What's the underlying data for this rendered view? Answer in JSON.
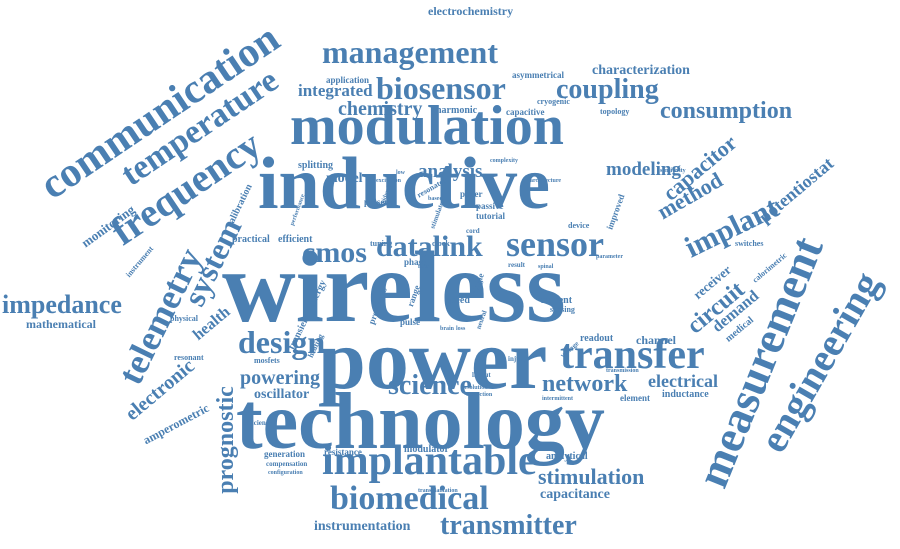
{
  "word_cloud": {
    "color": "#4a7fb2",
    "words": {
      "wireless": "wireless",
      "power": "power",
      "technology": "technology",
      "inductive": "inductive",
      "modulation": "modulation",
      "communication": "communication",
      "measurement": "measurement",
      "engineering": "engineering",
      "transfer": "transfer",
      "implantable": "implantable",
      "biomedical": "biomedical",
      "frequency": "frequency",
      "temperature": "temperature",
      "management": "management",
      "biosensor": "biosensor",
      "sensor": "sensor",
      "telemetry": "telemetry",
      "system": "system",
      "implant": "implant",
      "design": "design",
      "cmos": "cmos",
      "datalink": "datalink",
      "transmitter": "transmitter",
      "prognostic": "prognostic",
      "impedance": "impedance",
      "coupling": "coupling",
      "consumption": "consumption",
      "science": "science",
      "network": "network",
      "circuit": "circuit",
      "capacitor": "capacitor",
      "method": "method",
      "electronic": "electronic",
      "stimulation": "stimulation",
      "chemistry": "chemistry",
      "integrated": "integrated",
      "modeling": "modeling",
      "analysis": "analysis",
      "potentiostat": "potentiostat",
      "electrical": "electrical",
      "powering": "powering",
      "oscillator": "oscillator",
      "capacitance": "capacitance",
      "instrumentation": "instrumentation",
      "health": "health",
      "demand": "demand",
      "receiver": "receiver",
      "amperometric": "amperometric",
      "monitoring": "monitoring",
      "electrochemistry": "electrochemistry",
      "characterization": "characterization",
      "mathematical": "mathematical",
      "application": "application",
      "asymmetrical": "asymmetrical",
      "harmonic": "harmonic",
      "capacitive": "capacitive",
      "cryogenic": "cryogenic",
      "topology": "topology",
      "splitting": "splitting",
      "model": "model",
      "resonator": "resonator",
      "calibration": "calibration",
      "practical": "practical",
      "efficient": "efficient",
      "instrument": "instrument",
      "physical": "physical",
      "resonant": "resonant",
      "mosfets": "mosfets",
      "energy": "energy",
      "transient": "transient",
      "prosthesis": "prosthesis",
      "channel": "channel",
      "readout": "readout",
      "current": "current",
      "sensing": "sensing",
      "speed": "speed",
      "paper": "paper",
      "passive": "passive",
      "tutorial": "tutorial",
      "present": "present",
      "phase": "phase",
      "tuning": "tuning",
      "clock": "clock",
      "range": "range",
      "pulse": "pulse",
      "inductance": "inductance",
      "element": "element",
      "transmission": "transmission",
      "medical": "medical",
      "switches": "switches",
      "calorimetric": "calorimetric",
      "improved": "improved",
      "device": "device",
      "resistance": "resistance",
      "modulator": "modulator",
      "generation": "generation",
      "compensation": "compensation",
      "configuration": "configuration",
      "analytical": "analytical",
      "transplantation": "transplantation",
      "efficiency": "efficiency",
      "sensitivity": "sensitivity",
      "complexity": "complexity",
      "injury": "injury",
      "layout": "layout",
      "result": "result",
      "spinal": "spinal",
      "flow": "flow",
      "single": "single",
      "based": "based",
      "cord": "cord",
      "heating": "heating",
      "voltage": "voltage",
      "intermittent": "intermittent",
      "resolution": "resolution",
      "correction": "correction",
      "parameter": "parameter",
      "stimulator": "stimulator",
      "excitation": "excitation",
      "architecture": "architecture",
      "epidural": "epidural",
      "performance": "performance",
      "neural": "neural",
      "brain": "brain",
      "loss": "loss",
      "low": "low"
    }
  }
}
